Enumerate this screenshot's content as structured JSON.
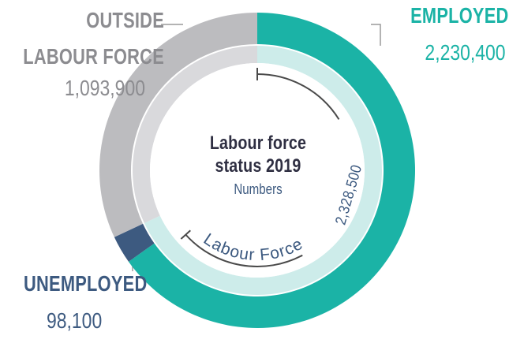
{
  "chart_data": {
    "type": "donut",
    "title_line1": "Labour force",
    "title_line2": "status 2019",
    "subtitle": "Numbers",
    "segments": [
      {
        "label": "EMPLOYED",
        "value_label": "2,230,400",
        "value": 2230400,
        "color": "#1bb3a6",
        "label_color": "#1bb3a6",
        "value_color": "#1bb3a6"
      },
      {
        "label": "UNEMPLOYED",
        "value_label": "98,100",
        "value": 98100,
        "color": "#3d5a80",
        "label_color": "#3d5a80",
        "value_color": "#3d5a80"
      },
      {
        "label": "OUTSIDE LABOUR FORCE",
        "value_label": "1,093,900",
        "value": 1093900,
        "color": "#bcbcbf",
        "label_color": "#8c8c90",
        "value_color": "#8c8c90"
      }
    ],
    "subtotal": {
      "label": "Labour Force",
      "value_label": "2,328,500",
      "value": 2328500
    },
    "colors": {
      "inner_ring": "#cdecea",
      "inner_ring_grey": "#d9d9dc",
      "bracket": "#4a4a4a",
      "leader": "#9a9a9a"
    }
  }
}
